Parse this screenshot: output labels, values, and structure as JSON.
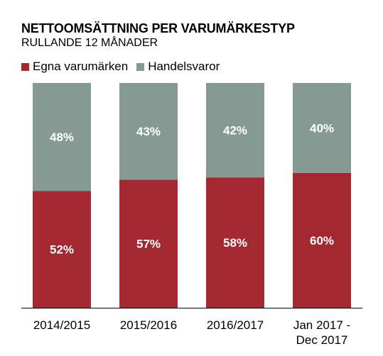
{
  "chart_data": {
    "type": "bar",
    "stacked": true,
    "title": "NETTOOMSÄTTNING PER VARUMÄRKESTYP",
    "subtitle": "RULLANDE 12 MÅNADER",
    "categories": [
      [
        "2014/2015"
      ],
      [
        "2015/2016"
      ],
      [
        "2016/2017"
      ],
      [
        "Jan 2017 -",
        "Dec 2017"
      ]
    ],
    "series": [
      {
        "name": "Egna varumärken",
        "color": "#a4282f",
        "values": [
          52,
          57,
          58,
          60
        ]
      },
      {
        "name": "Handelsvaror",
        "color": "#869a93",
        "values": [
          48,
          43,
          42,
          40
        ]
      }
    ],
    "value_suffix": "%",
    "ylim": [
      0,
      100
    ],
    "legend": "top-left",
    "grid": false
  }
}
